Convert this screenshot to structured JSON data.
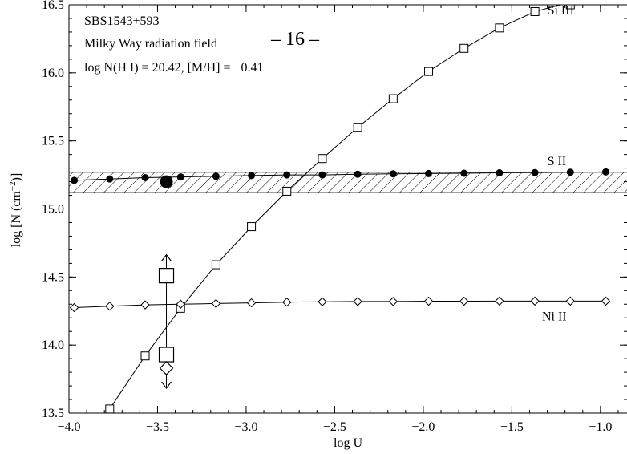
{
  "page_header": "– 16 –",
  "annotation": {
    "line1": "SBS1543+593",
    "line2": "Milky Way radiation field",
    "line3": "log N(H I) = 20.42, [M/H] = −0.41"
  },
  "chart_data": {
    "type": "line",
    "xlabel": "log U",
    "ylabel_main": "log [N (cm",
    "ylabel_sup": "−2",
    "ylabel_end": ")]",
    "xlim": [
      -4.0,
      -0.85
    ],
    "ylim": [
      13.5,
      16.5
    ],
    "x_ticks": [
      -4.0,
      -3.5,
      -3.0,
      -2.5,
      -2.0,
      -1.5,
      -1.0
    ],
    "x_tick_labels": [
      "−4.0",
      "−3.5",
      "−3.0",
      "−2.5",
      "−2.0",
      "−1.5",
      "−1.0"
    ],
    "y_ticks": [
      13.5,
      14.0,
      14.5,
      15.0,
      15.5,
      16.0,
      16.5
    ],
    "y_tick_labels": [
      "13.5",
      "14.0",
      "14.5",
      "15.0",
      "15.5",
      "16.0",
      "16.5"
    ],
    "grid": false,
    "series": [
      {
        "name": "Si III",
        "marker": "square",
        "points": [
          [
            -3.77,
            13.53
          ],
          [
            -3.57,
            13.92
          ],
          [
            -3.37,
            14.27
          ],
          [
            -3.17,
            14.59
          ],
          [
            -2.97,
            14.87
          ],
          [
            -2.77,
            15.13
          ],
          [
            -2.57,
            15.37
          ],
          [
            -2.37,
            15.6
          ],
          [
            -2.17,
            15.81
          ],
          [
            -1.97,
            16.01
          ],
          [
            -1.77,
            16.18
          ],
          [
            -1.57,
            16.33
          ],
          [
            -1.37,
            16.45
          ],
          [
            -1.17,
            16.5
          ]
        ],
        "curve": [
          [
            -3.87,
            13.33
          ],
          [
            -3.77,
            13.53
          ],
          [
            -3.57,
            13.92
          ],
          [
            -3.37,
            14.27
          ],
          [
            -3.17,
            14.59
          ],
          [
            -2.97,
            14.87
          ],
          [
            -2.77,
            15.13
          ],
          [
            -2.57,
            15.37
          ],
          [
            -2.37,
            15.6
          ],
          [
            -2.17,
            15.81
          ],
          [
            -1.97,
            16.01
          ],
          [
            -1.77,
            16.18
          ],
          [
            -1.57,
            16.33
          ],
          [
            -1.37,
            16.45
          ],
          [
            -1.17,
            16.52
          ],
          [
            -1.05,
            16.55
          ]
        ]
      },
      {
        "name": "S II",
        "marker": "filled-circle",
        "points": [
          [
            -3.97,
            15.21
          ],
          [
            -3.77,
            15.22
          ],
          [
            -3.57,
            15.23
          ],
          [
            -3.37,
            15.235
          ],
          [
            -3.17,
            15.24
          ],
          [
            -2.97,
            15.245
          ],
          [
            -2.77,
            15.25
          ],
          [
            -2.57,
            15.25
          ],
          [
            -2.37,
            15.255
          ],
          [
            -2.17,
            15.258
          ],
          [
            -1.97,
            15.26
          ],
          [
            -1.77,
            15.262
          ],
          [
            -1.57,
            15.265
          ],
          [
            -1.37,
            15.267
          ],
          [
            -1.17,
            15.27
          ],
          [
            -0.97,
            15.272
          ]
        ]
      },
      {
        "name": "Ni II",
        "marker": "diamond",
        "points": [
          [
            -3.97,
            14.275
          ],
          [
            -3.77,
            14.285
          ],
          [
            -3.57,
            14.295
          ],
          [
            -3.37,
            14.3
          ],
          [
            -3.17,
            14.305
          ],
          [
            -2.97,
            14.31
          ],
          [
            -2.77,
            14.315
          ],
          [
            -2.57,
            14.318
          ],
          [
            -2.37,
            14.32
          ],
          [
            -2.17,
            14.32
          ],
          [
            -1.97,
            14.322
          ],
          [
            -1.77,
            14.322
          ],
          [
            -1.57,
            14.323
          ],
          [
            -1.37,
            14.323
          ],
          [
            -1.17,
            14.323
          ],
          [
            -0.97,
            14.323
          ]
        ]
      }
    ],
    "series_labels": [
      {
        "text": "Si III",
        "x": -1.3,
        "y": 16.43
      },
      {
        "text": "S II",
        "x": -1.3,
        "y": 15.32
      },
      {
        "text": "Ni II",
        "x": -1.33,
        "y": 14.18
      }
    ],
    "observed_band": {
      "y_low": 15.12,
      "y_high": 15.27,
      "hatched": true
    },
    "observations": {
      "log_u": -3.45,
      "s_ii": 15.2,
      "si_iii_lower_limit": 14.51,
      "si_iii_upper_limit": 13.93,
      "ni_ii_upper_limit": 13.83
    }
  }
}
